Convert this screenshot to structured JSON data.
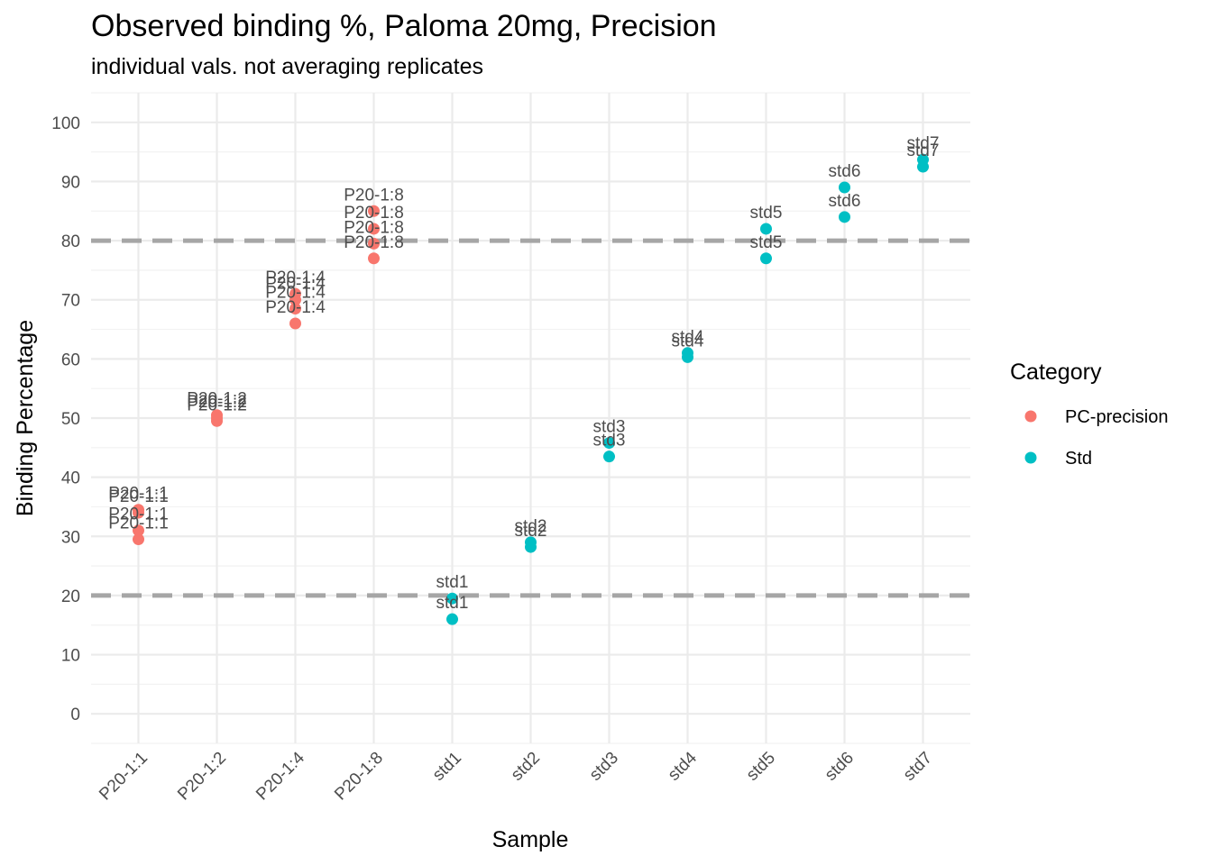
{
  "chart_data": {
    "type": "scatter",
    "title": "Observed binding %, Paloma 20mg, Precision",
    "subtitle": "individual vals. not averaging replicates",
    "xlabel": "Sample",
    "ylabel": "Binding Percentage",
    "categories": [
      "P20-1:1",
      "P20-1:2",
      "P20-1:4",
      "P20-1:8",
      "std1",
      "std2",
      "std3",
      "std4",
      "std5",
      "std6",
      "std7"
    ],
    "ylim": [
      -5,
      105
    ],
    "yticks": [
      0,
      10,
      20,
      30,
      40,
      50,
      60,
      70,
      80,
      90,
      100
    ],
    "hlines": [
      20,
      80
    ],
    "grid": true,
    "legend_placement": "right",
    "legend": {
      "title": "Category",
      "items": [
        {
          "name": "PC-precision",
          "color": "#F8766D"
        },
        {
          "name": "Std",
          "color": "#00BFC4"
        }
      ]
    },
    "series": [
      {
        "name": "PC-precision",
        "color": "#F8766D",
        "points": [
          {
            "x": "P20-1:1",
            "y": 34.5,
            "label": "P20-1:1"
          },
          {
            "x": "P20-1:1",
            "y": 34.0,
            "label": "P20-1:1"
          },
          {
            "x": "P20-1:1",
            "y": 31.0,
            "label": "P20-1:1"
          },
          {
            "x": "P20-1:1",
            "y": 29.5,
            "label": "P20-1:1"
          },
          {
            "x": "P20-1:2",
            "y": 50.5,
            "label": "P20-1:2"
          },
          {
            "x": "P20-1:2",
            "y": 50.0,
            "label": "P20-1:2"
          },
          {
            "x": "P20-1:2",
            "y": 49.5,
            "label": "P20-1:2"
          },
          {
            "x": "P20-1:4",
            "y": 71.0,
            "label": "P20-1:4"
          },
          {
            "x": "P20-1:4",
            "y": 70.0,
            "label": "P20-1:4"
          },
          {
            "x": "P20-1:4",
            "y": 68.5,
            "label": "P20-1:4"
          },
          {
            "x": "P20-1:4",
            "y": 66.0,
            "label": "P20-1:4"
          },
          {
            "x": "P20-1:8",
            "y": 85.0,
            "label": "P20-1:8"
          },
          {
            "x": "P20-1:8",
            "y": 82.0,
            "label": "P20-1:8"
          },
          {
            "x": "P20-1:8",
            "y": 79.5,
            "label": "P20-1:8"
          },
          {
            "x": "P20-1:8",
            "y": 77.0,
            "label": "P20-1:8"
          }
        ]
      },
      {
        "name": "Std",
        "color": "#00BFC4",
        "points": [
          {
            "x": "std1",
            "y": 19.5,
            "label": "std1"
          },
          {
            "x": "std1",
            "y": 16.0,
            "label": "std1"
          },
          {
            "x": "std2",
            "y": 29.0,
            "label": "std2"
          },
          {
            "x": "std2",
            "y": 28.2,
            "label": "std2"
          },
          {
            "x": "std3",
            "y": 45.8,
            "label": "std3"
          },
          {
            "x": "std3",
            "y": 43.5,
            "label": "std3"
          },
          {
            "x": "std4",
            "y": 61.0,
            "label": "std4"
          },
          {
            "x": "std4",
            "y": 60.3,
            "label": "std4"
          },
          {
            "x": "std5",
            "y": 82.0,
            "label": "std5"
          },
          {
            "x": "std5",
            "y": 77.0,
            "label": "std5"
          },
          {
            "x": "std6",
            "y": 89.0,
            "label": "std6"
          },
          {
            "x": "std6",
            "y": 84.0,
            "label": "std6"
          },
          {
            "x": "std7",
            "y": 93.7,
            "label": "std7"
          },
          {
            "x": "std7",
            "y": 92.5,
            "label": "std7"
          }
        ]
      }
    ]
  }
}
